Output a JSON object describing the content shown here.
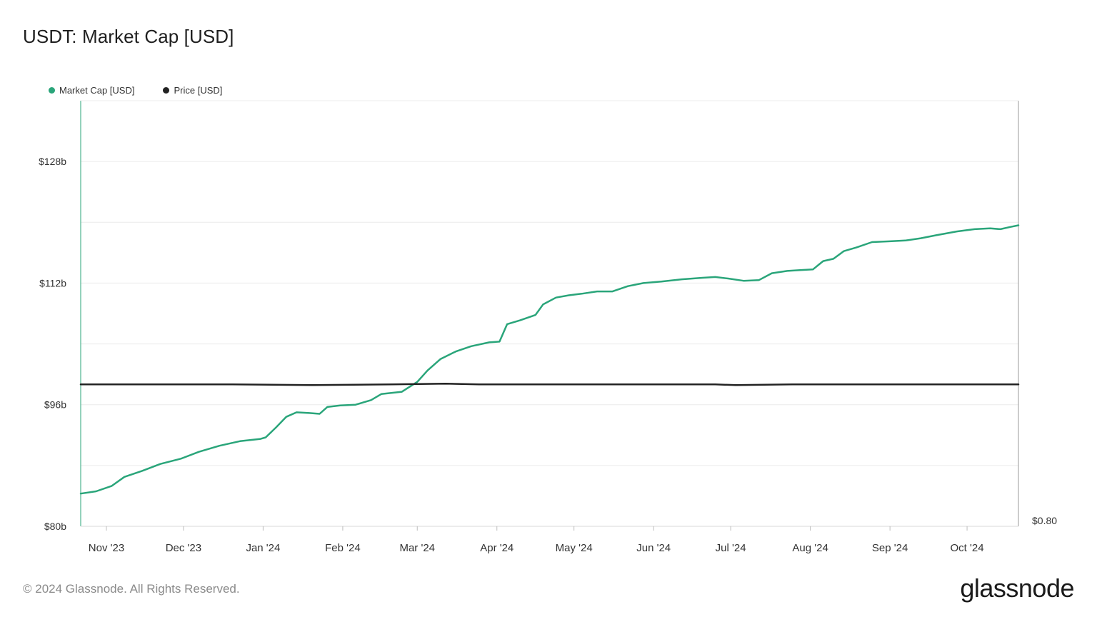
{
  "title": "USDT: Market Cap [USD]",
  "footer": "© 2024 Glassnode. All Rights Reserved.",
  "brand": "glassnode",
  "legend": [
    {
      "name": "Market Cap [USD]",
      "color": "#2aa57a"
    },
    {
      "name": "Price [USD]",
      "color": "#222222"
    }
  ],
  "chart_data": {
    "type": "line",
    "title": "USDT: Market Cap [USD]",
    "x_tick_labels": [
      "Nov '23",
      "Dec '23",
      "Jan '24",
      "Feb '24",
      "Mar '24",
      "Apr '24",
      "May '24",
      "Jun '24",
      "Jul '24",
      "Aug '24",
      "Sep '24",
      "Oct '24"
    ],
    "y_left_tick_labels": [
      "$80b",
      "$96b",
      "$112b",
      "$128b"
    ],
    "y_right_tick_labels": [
      "$0.80"
    ],
    "y_left_range": [
      80,
      136
    ],
    "x_range": [
      "2023-10-22",
      "2024-10-21"
    ],
    "grid": true,
    "legend_position": "top-left",
    "series": [
      {
        "name": "Market Cap [USD]",
        "axis": "left",
        "unit": "billion USD",
        "color": "#2aa57a",
        "points": [
          [
            "2023-10-22",
            84.3
          ],
          [
            "2023-10-28",
            84.6
          ],
          [
            "2023-11-03",
            85.3
          ],
          [
            "2023-11-08",
            86.5
          ],
          [
            "2023-11-15",
            87.3
          ],
          [
            "2023-11-22",
            88.2
          ],
          [
            "2023-11-30",
            88.9
          ],
          [
            "2023-12-07",
            89.8
          ],
          [
            "2023-12-15",
            90.6
          ],
          [
            "2023-12-23",
            91.2
          ],
          [
            "2023-12-31",
            91.5
          ],
          [
            "2024-01-02",
            91.7
          ],
          [
            "2024-01-06",
            93.0
          ],
          [
            "2024-01-10",
            94.4
          ],
          [
            "2024-01-14",
            95.0
          ],
          [
            "2024-01-19",
            94.9
          ],
          [
            "2024-01-23",
            94.8
          ],
          [
            "2024-01-26",
            95.7
          ],
          [
            "2024-01-31",
            95.9
          ],
          [
            "2024-02-06",
            96.0
          ],
          [
            "2024-02-12",
            96.6
          ],
          [
            "2024-02-16",
            97.4
          ],
          [
            "2024-02-24",
            97.7
          ],
          [
            "2024-03-01",
            99.0
          ],
          [
            "2024-03-05",
            100.5
          ],
          [
            "2024-03-10",
            102.0
          ],
          [
            "2024-03-16",
            103.0
          ],
          [
            "2024-03-22",
            103.7
          ],
          [
            "2024-03-29",
            104.2
          ],
          [
            "2024-04-02",
            104.3
          ],
          [
            "2024-04-05",
            106.6
          ],
          [
            "2024-04-10",
            107.1
          ],
          [
            "2024-04-16",
            107.8
          ],
          [
            "2024-04-19",
            109.2
          ],
          [
            "2024-04-24",
            110.1
          ],
          [
            "2024-04-29",
            110.4
          ],
          [
            "2024-05-04",
            110.6
          ],
          [
            "2024-05-10",
            110.9
          ],
          [
            "2024-05-16",
            110.9
          ],
          [
            "2024-05-22",
            111.6
          ],
          [
            "2024-05-28",
            112.0
          ],
          [
            "2024-06-04",
            112.2
          ],
          [
            "2024-06-12",
            112.5
          ],
          [
            "2024-06-20",
            112.7
          ],
          [
            "2024-06-25",
            112.8
          ],
          [
            "2024-06-30",
            112.6
          ],
          [
            "2024-07-06",
            112.3
          ],
          [
            "2024-07-12",
            112.4
          ],
          [
            "2024-07-17",
            113.3
          ],
          [
            "2024-07-23",
            113.6
          ],
          [
            "2024-07-28",
            113.7
          ],
          [
            "2024-08-02",
            113.8
          ],
          [
            "2024-08-06",
            114.9
          ],
          [
            "2024-08-10",
            115.2
          ],
          [
            "2024-08-14",
            116.2
          ],
          [
            "2024-08-19",
            116.7
          ],
          [
            "2024-08-25",
            117.4
          ],
          [
            "2024-09-01",
            117.5
          ],
          [
            "2024-09-07",
            117.6
          ],
          [
            "2024-09-13",
            117.9
          ],
          [
            "2024-09-19",
            118.3
          ],
          [
            "2024-09-27",
            118.8
          ],
          [
            "2024-10-04",
            119.1
          ],
          [
            "2024-10-10",
            119.2
          ],
          [
            "2024-10-14",
            119.1
          ],
          [
            "2024-10-18",
            119.4
          ],
          [
            "2024-10-21",
            119.6
          ]
        ]
      },
      {
        "name": "Price [USD]",
        "axis": "right",
        "unit": "USD",
        "color": "#222222",
        "points": [
          [
            "2023-10-22",
            1.0
          ],
          [
            "2023-11-20",
            1.0
          ],
          [
            "2023-12-20",
            1.0
          ],
          [
            "2024-01-20",
            0.999
          ],
          [
            "2024-02-20",
            1.0
          ],
          [
            "2024-03-12",
            1.001
          ],
          [
            "2024-03-25",
            1.0
          ],
          [
            "2024-04-25",
            1.0
          ],
          [
            "2024-05-25",
            1.0
          ],
          [
            "2024-06-25",
            1.0
          ],
          [
            "2024-07-03",
            0.999
          ],
          [
            "2024-07-25",
            1.0
          ],
          [
            "2024-08-25",
            1.0
          ],
          [
            "2024-09-25",
            1.0
          ],
          [
            "2024-10-21",
            1.0
          ]
        ]
      }
    ]
  }
}
